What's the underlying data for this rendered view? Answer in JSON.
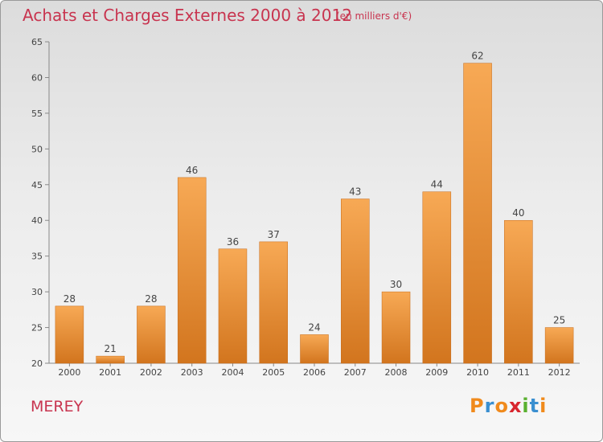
{
  "title": "Achats et Charges Externes 2000 à 2012",
  "subtitle": "(en milliers d'€)",
  "commune": "MEREY",
  "logo": {
    "letters": [
      "P",
      "r",
      "o",
      "x",
      "i",
      "t",
      "i"
    ],
    "colors": [
      "#f08a1c",
      "#3a8fd0",
      "#f08a1c",
      "#d8262e",
      "#5ab030",
      "#3a8fd0",
      "#f08a1c"
    ]
  },
  "colors": {
    "bar_light": "#f7a955",
    "bar_dark": "#d2751e",
    "text_accent": "#c8344f"
  },
  "chart_data": {
    "type": "bar",
    "categories": [
      "2000",
      "2001",
      "2002",
      "2003",
      "2004",
      "2005",
      "2006",
      "2007",
      "2008",
      "2009",
      "2010",
      "2011",
      "2012"
    ],
    "values": [
      28,
      21,
      28,
      46,
      36,
      37,
      24,
      43,
      30,
      44,
      62,
      40,
      25
    ],
    "ylim": [
      20,
      65
    ],
    "yticks": [
      20,
      25,
      30,
      35,
      40,
      45,
      50,
      55,
      60,
      65
    ],
    "grid": false
  }
}
